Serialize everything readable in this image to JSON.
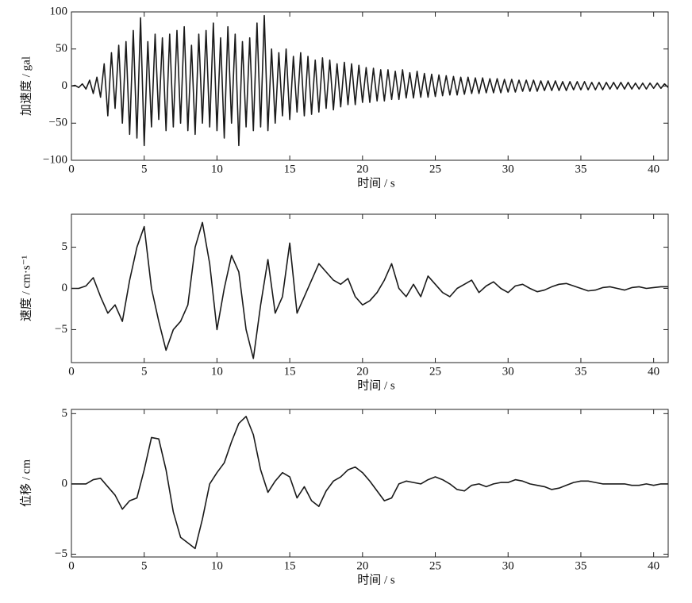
{
  "chart_data": [
    {
      "type": "line",
      "ylabel": "加速度 / gal",
      "xlabel": "时间 / s",
      "color": "#1a1a1a",
      "xlim": [
        0,
        41
      ],
      "xticks": [
        0,
        5,
        10,
        15,
        20,
        25,
        30,
        35,
        40
      ],
      "ylim": [
        -100,
        100
      ],
      "yticks": [
        {
          "value": -100,
          "label": "−100"
        },
        {
          "value": -50,
          "label": "−50"
        },
        0,
        50,
        100
      ],
      "x": [
        0,
        0.25,
        0.5,
        0.75,
        1,
        1.25,
        1.5,
        1.75,
        2,
        2.25,
        2.5,
        2.75,
        3,
        3.25,
        3.5,
        3.75,
        4,
        4.25,
        4.5,
        4.75,
        5,
        5.25,
        5.5,
        5.75,
        6,
        6.25,
        6.5,
        6.75,
        7,
        7.25,
        7.5,
        7.75,
        8,
        8.25,
        8.5,
        8.75,
        9,
        9.25,
        9.5,
        9.75,
        10,
        10.25,
        10.5,
        10.75,
        11,
        11.25,
        11.5,
        11.75,
        12,
        12.25,
        12.5,
        12.75,
        13,
        13.25,
        13.5,
        13.75,
        14,
        14.25,
        14.5,
        14.75,
        15,
        15.25,
        15.5,
        15.75,
        16,
        16.25,
        16.5,
        16.75,
        17,
        17.25,
        17.5,
        17.75,
        18,
        18.25,
        18.5,
        18.75,
        19,
        19.25,
        19.5,
        19.75,
        20,
        20.25,
        20.5,
        20.75,
        21,
        21.25,
        21.5,
        21.75,
        22,
        22.25,
        22.5,
        22.75,
        23,
        23.25,
        23.5,
        23.75,
        24,
        24.25,
        24.5,
        24.75,
        25,
        25.25,
        25.5,
        25.75,
        26,
        26.25,
        26.5,
        26.75,
        27,
        27.25,
        27.5,
        27.75,
        28,
        28.25,
        28.5,
        28.75,
        29,
        29.25,
        29.5,
        29.75,
        30,
        30.25,
        30.5,
        30.75,
        31,
        31.25,
        31.5,
        31.75,
        32,
        32.25,
        32.5,
        32.75,
        33,
        33.25,
        33.5,
        33.75,
        34,
        34.25,
        34.5,
        34.75,
        35,
        35.25,
        35.5,
        35.75,
        36,
        36.25,
        36.5,
        36.75,
        37,
        37.25,
        37.5,
        37.75,
        38,
        38.25,
        38.5,
        38.75,
        39,
        39.25,
        39.5,
        39.75,
        40,
        40.25,
        40.5,
        40.75,
        41
      ],
      "values": [
        0,
        1,
        -2,
        3,
        -4,
        8,
        -10,
        12,
        -15,
        30,
        -40,
        45,
        -30,
        55,
        -50,
        60,
        -65,
        75,
        -70,
        92,
        -80,
        60,
        -55,
        70,
        -45,
        65,
        -60,
        70,
        -55,
        75,
        -50,
        80,
        -60,
        55,
        -65,
        70,
        -50,
        75,
        -55,
        85,
        -60,
        65,
        -70,
        80,
        -50,
        70,
        -80,
        60,
        -55,
        65,
        -60,
        85,
        -55,
        95,
        -60,
        50,
        -50,
        45,
        -40,
        50,
        -45,
        40,
        -35,
        45,
        -40,
        40,
        -38,
        35,
        -35,
        38,
        -30,
        35,
        -32,
        30,
        -28,
        32,
        -25,
        30,
        -25,
        28,
        -22,
        25,
        -22,
        24,
        -20,
        22,
        -20,
        22,
        -18,
        20,
        -18,
        22,
        -16,
        18,
        -16,
        20,
        -15,
        17,
        -15,
        16,
        -14,
        15,
        -13,
        14,
        -12,
        13,
        -12,
        12,
        -11,
        12,
        -10,
        11,
        -10,
        11,
        -9,
        10,
        -9,
        10,
        -9,
        9,
        -8,
        9,
        -8,
        8,
        -7,
        8,
        -7,
        8,
        -7,
        7,
        -6,
        7,
        -6,
        7,
        -6,
        6,
        -6,
        6,
        -5,
        6,
        -5,
        6,
        -5,
        5,
        -5,
        5,
        -5,
        5,
        -4,
        5,
        -4,
        5,
        -4,
        5,
        -4,
        4,
        -4,
        4,
        -4,
        4,
        -3,
        4,
        -3,
        3,
        -2
      ]
    },
    {
      "type": "line",
      "ylabel": "速度 / cm·s⁻¹",
      "xlabel": "时间 / s",
      "color": "#1a1a1a",
      "xlim": [
        0,
        41
      ],
      "xticks": [
        0,
        5,
        10,
        15,
        20,
        25,
        30,
        35,
        40
      ],
      "ylim": [
        -9,
        9
      ],
      "yticks": [
        {
          "value": -5,
          "label": "−5"
        },
        0,
        5
      ],
      "x": [
        0,
        0.5,
        1,
        1.5,
        2,
        2.5,
        3,
        3.5,
        4,
        4.5,
        5,
        5.5,
        6,
        6.5,
        7,
        7.5,
        8,
        8.5,
        9,
        9.5,
        10,
        10.5,
        11,
        11.5,
        12,
        12.5,
        13,
        13.5,
        14,
        14.5,
        15,
        15.5,
        16,
        16.5,
        17,
        17.5,
        18,
        18.5,
        19,
        19.5,
        20,
        20.5,
        21,
        21.5,
        22,
        22.5,
        23,
        23.5,
        24,
        24.5,
        25,
        25.5,
        26,
        26.5,
        27,
        27.5,
        28,
        28.5,
        29,
        29.5,
        30,
        30.5,
        31,
        31.5,
        32,
        32.5,
        33,
        33.5,
        34,
        34.5,
        35,
        35.5,
        36,
        36.5,
        37,
        37.5,
        38,
        38.5,
        39,
        39.5,
        40,
        40.5,
        41
      ],
      "values": [
        0,
        0,
        0.3,
        1.3,
        -1,
        -3,
        -2,
        -4,
        1,
        5,
        7.5,
        0,
        -4,
        -7.5,
        -5,
        -4,
        -2,
        5,
        8,
        3,
        -5,
        0,
        4,
        2,
        -5,
        -8.5,
        -2,
        3.5,
        -3,
        -1,
        5.5,
        -3,
        -1,
        1,
        3,
        2,
        1,
        0.5,
        1.2,
        -1,
        -2,
        -1.5,
        -0.5,
        1,
        3,
        0,
        -1,
        0.5,
        -1,
        1.5,
        0.5,
        -0.5,
        -1,
        0,
        0.5,
        1,
        -0.5,
        0.3,
        0.8,
        0,
        -0.5,
        0.3,
        0.5,
        0,
        -0.4,
        -0.2,
        0.2,
        0.5,
        0.6,
        0.3,
        0,
        -0.3,
        -0.2,
        0.1,
        0.2,
        0,
        -0.2,
        0.1,
        0.2,
        0,
        0.1,
        0.2,
        0.2
      ]
    },
    {
      "type": "line",
      "ylabel": "位移 / cm",
      "xlabel": "时间 / s",
      "color": "#1a1a1a",
      "xlim": [
        0,
        41
      ],
      "xticks": [
        0,
        5,
        10,
        15,
        20,
        25,
        30,
        35,
        40
      ],
      "ylim": [
        -5.2,
        5.3
      ],
      "yticks": [
        {
          "value": -5,
          "label": "−5"
        },
        0,
        5
      ],
      "x": [
        0,
        0.5,
        1,
        1.5,
        2,
        2.5,
        3,
        3.5,
        4,
        4.5,
        5,
        5.5,
        6,
        6.5,
        7,
        7.5,
        8,
        8.5,
        9,
        9.5,
        10,
        10.5,
        11,
        11.5,
        12,
        12.5,
        13,
        13.5,
        14,
        14.5,
        15,
        15.5,
        16,
        16.5,
        17,
        17.5,
        18,
        18.5,
        19,
        19.5,
        20,
        20.5,
        21,
        21.5,
        22,
        22.5,
        23,
        23.5,
        24,
        24.5,
        25,
        25.5,
        26,
        26.5,
        27,
        27.5,
        28,
        28.5,
        29,
        29.5,
        30,
        30.5,
        31,
        31.5,
        32,
        32.5,
        33,
        33.5,
        34,
        34.5,
        35,
        35.5,
        36,
        36.5,
        37,
        37.5,
        38,
        38.5,
        39,
        39.5,
        40,
        40.5,
        41
      ],
      "values": [
        0,
        0,
        0,
        0.3,
        0.4,
        -0.2,
        -0.8,
        -1.8,
        -1.2,
        -1,
        1,
        3.3,
        3.2,
        1,
        -2,
        -3.8,
        -4.2,
        -4.6,
        -2.5,
        0,
        0.8,
        1.5,
        3,
        4.3,
        4.8,
        3.5,
        1,
        -0.6,
        0.2,
        0.8,
        0.5,
        -1,
        -0.2,
        -1.2,
        -1.6,
        -0.5,
        0.2,
        0.5,
        1,
        1.2,
        0.8,
        0.2,
        -0.5,
        -1.2,
        -1,
        0,
        0.2,
        0.1,
        0,
        0.3,
        0.5,
        0.3,
        0,
        -0.4,
        -0.5,
        -0.1,
        0,
        -0.2,
        0,
        0.1,
        0.1,
        0.3,
        0.2,
        0,
        -0.1,
        -0.2,
        -0.4,
        -0.3,
        -0.1,
        0.1,
        0.2,
        0.2,
        0.1,
        0,
        0,
        0,
        0,
        -0.1,
        -0.1,
        0,
        -0.1,
        0,
        0
      ]
    }
  ]
}
